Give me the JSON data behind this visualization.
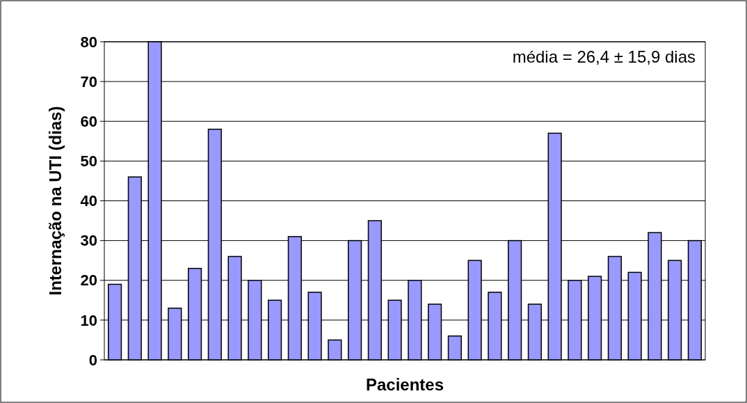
{
  "chart_data": {
    "type": "bar",
    "xlabel": "Pacientes",
    "ylabel": "Internação na UTI (dias)",
    "annotations": [
      "média = 26,4 ± 15,9 dias"
    ],
    "categories": [
      null,
      null,
      null,
      null,
      null,
      null,
      null,
      null,
      null,
      null,
      null,
      null,
      null,
      null,
      null,
      null,
      null,
      null,
      null,
      null,
      null,
      null,
      null,
      null,
      null,
      null,
      null,
      null,
      null,
      null
    ],
    "values": [
      19,
      46,
      80,
      13,
      23,
      58,
      26,
      20,
      15,
      31,
      17,
      5,
      30,
      35,
      15,
      20,
      14,
      6,
      25,
      17,
      30,
      14,
      57,
      20,
      21,
      26,
      22,
      32,
      25,
      30
    ],
    "color": "#9999ff",
    "ylim": [
      0,
      80
    ],
    "yticks": [
      0,
      10,
      20,
      30,
      40,
      50,
      60,
      70,
      80
    ],
    "grid": "y"
  }
}
